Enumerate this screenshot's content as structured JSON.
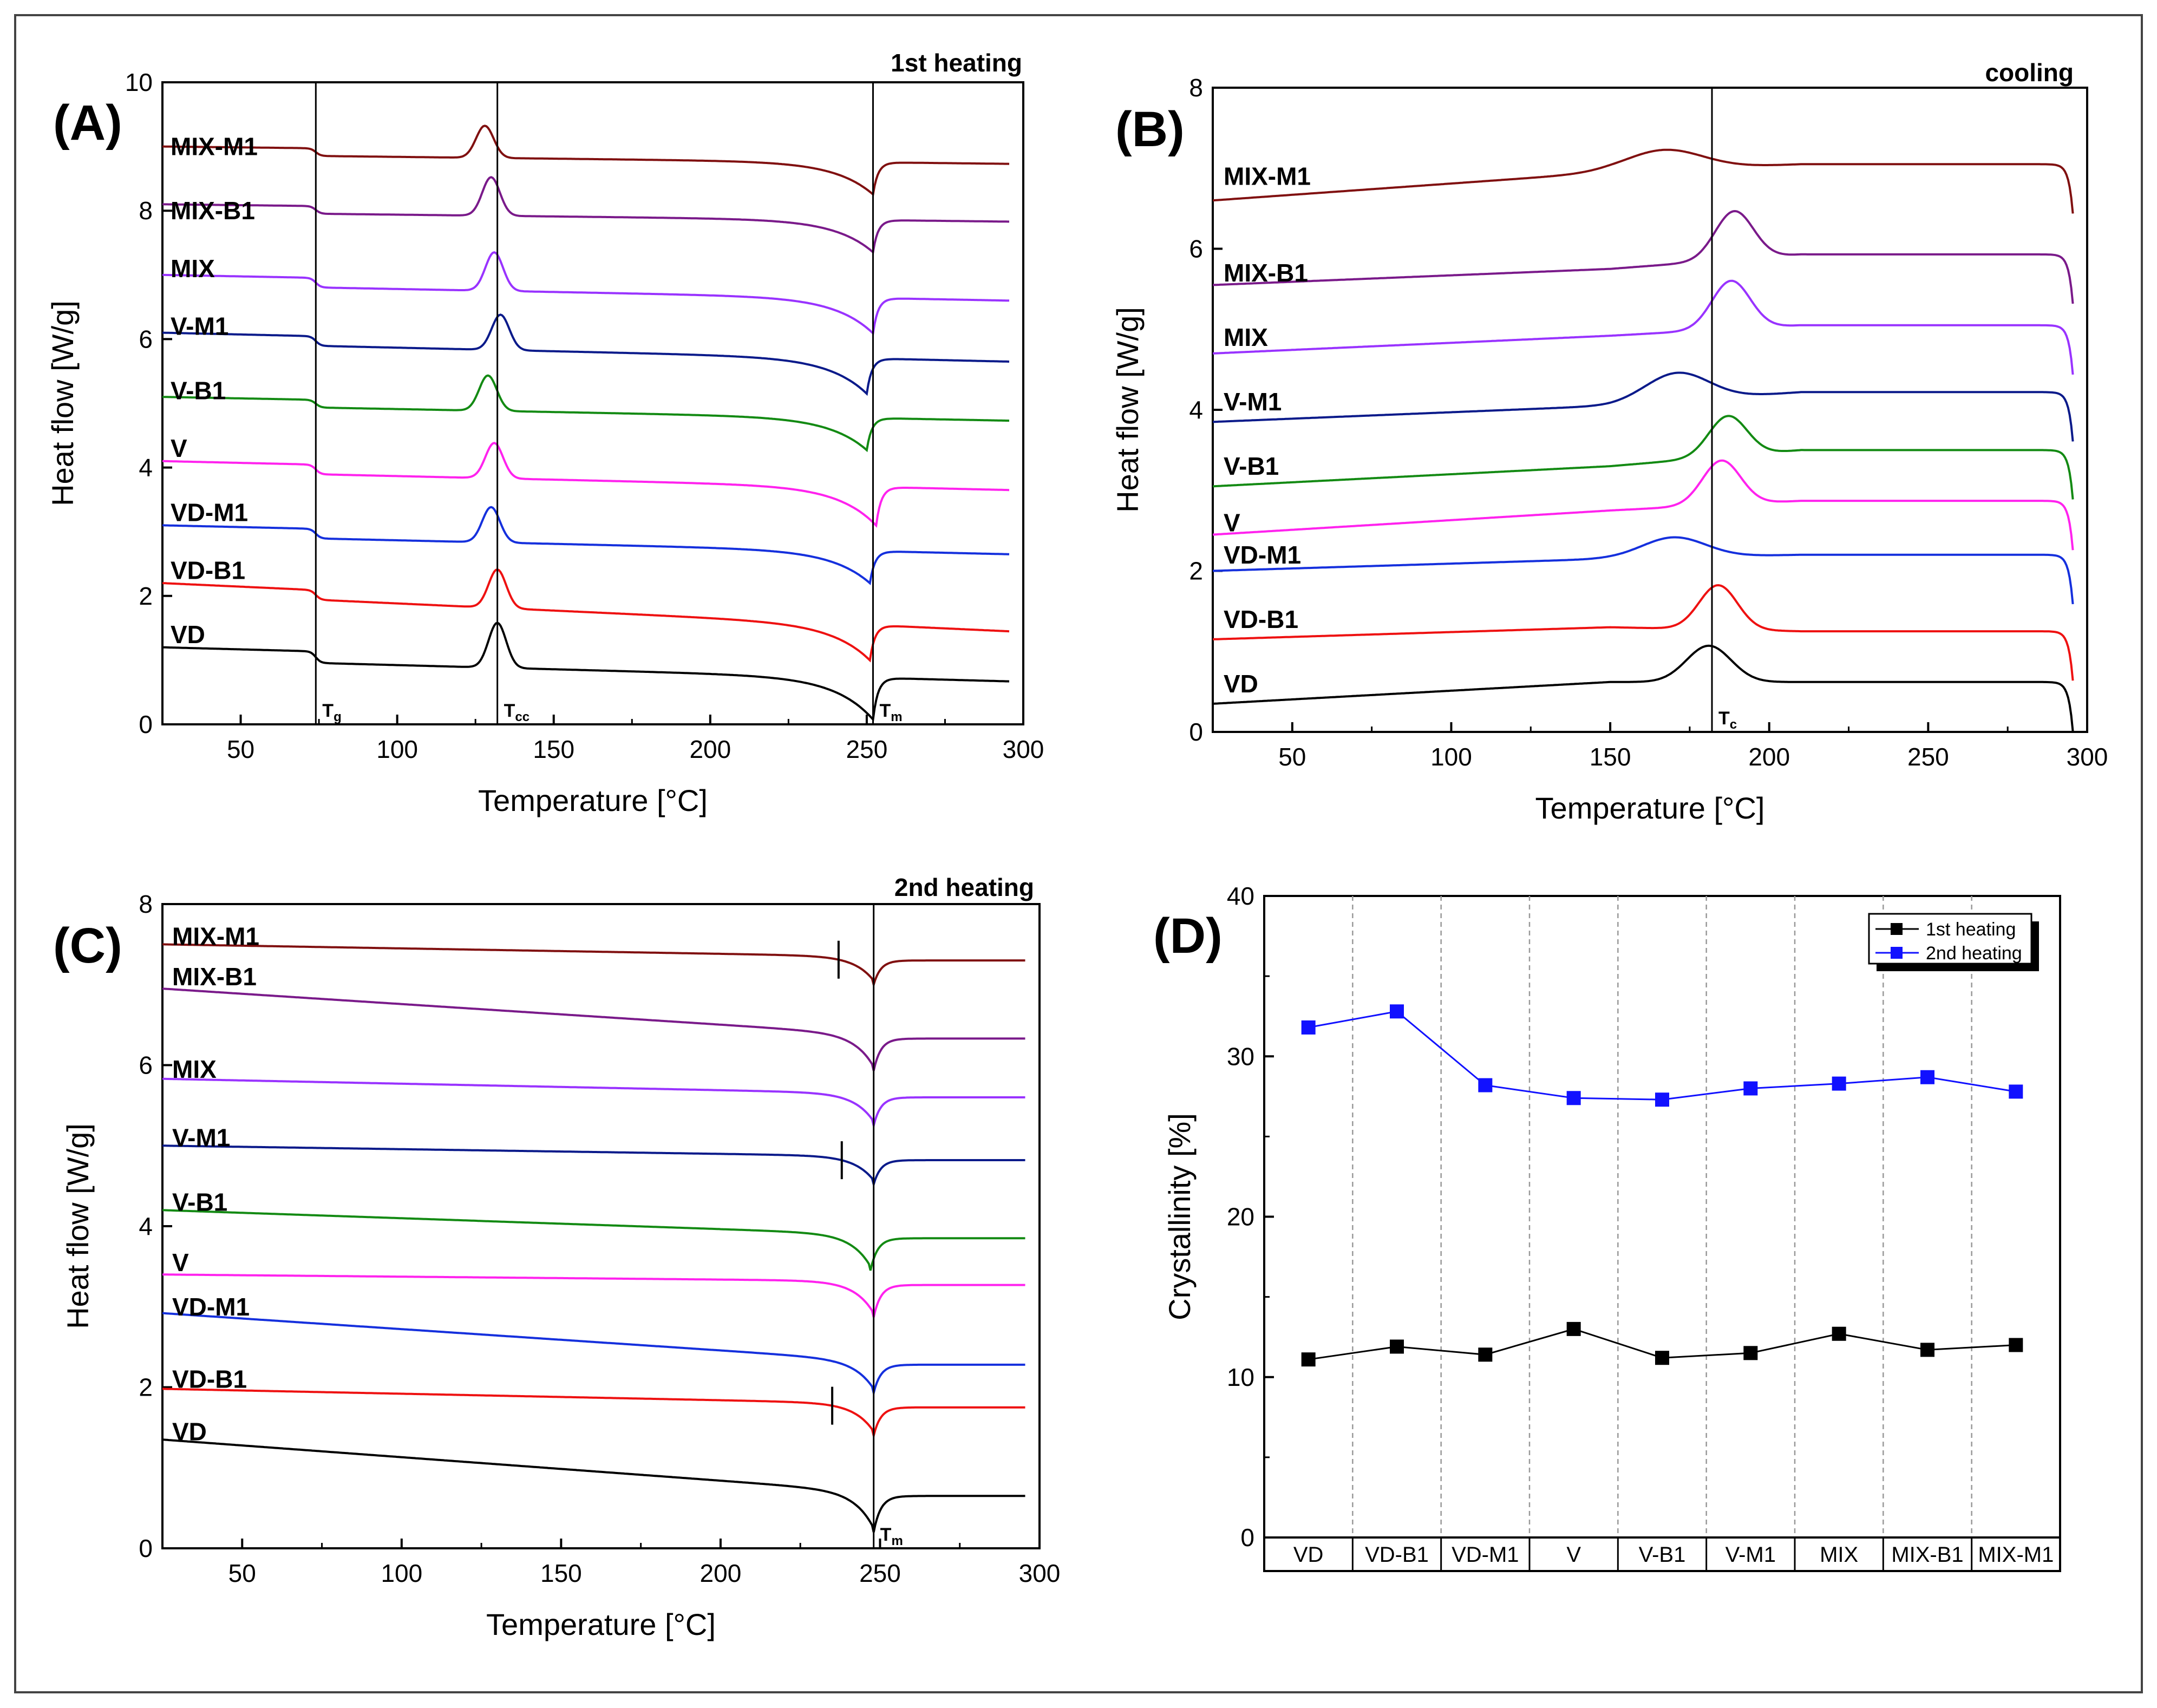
{
  "colors": {
    "VD": "#000000",
    "VD-B1": "#ee1111",
    "VD-M1": "#1530dd",
    "V": "#ff22ee",
    "V-B1": "#138a13",
    "V-M1": "#0a1a8a",
    "MIX": "#9933ff",
    "MIX-B1": "#7a1a8a",
    "MIX-M1": "#801010",
    "series1": "#000000",
    "series2": "#1111ff"
  },
  "chart_data": [
    {
      "id": "A",
      "type": "line",
      "panel_label": "(A)",
      "title": "1st heating",
      "xlabel": "Temperature [°C]",
      "ylabel": "Heat flow [W/g]",
      "xlim": [
        25,
        300
      ],
      "ylim": [
        0,
        10
      ],
      "xticks": [
        "50",
        "100",
        "150",
        "200",
        "250",
        "300"
      ],
      "yticks": [
        "0",
        "2",
        "4",
        "6",
        "8",
        "10"
      ],
      "vlines": [
        {
          "x": 74,
          "label": "T",
          "sub": "g"
        },
        {
          "x": 132,
          "label": "T",
          "sub": "cc"
        },
        {
          "x": 252,
          "label": "T",
          "sub": "m"
        }
      ],
      "series": [
        {
          "name": "VD",
          "start": 1.2,
          "end": 0.85,
          "tg_step": 0.18,
          "cc": {
            "x": 132,
            "h": 0.7
          },
          "m": {
            "x": 252,
            "d": 0.65
          },
          "label_y": 1.4
        },
        {
          "name": "VD-B1",
          "start": 2.2,
          "end": 1.6,
          "tg_step": 0.15,
          "cc": {
            "x": 132,
            "h": 0.6
          },
          "m": {
            "x": 251,
            "d": 0.55
          },
          "label_y": 2.4
        },
        {
          "name": "VD-M1",
          "start": 3.1,
          "end": 2.8,
          "tg_step": 0.15,
          "cc": {
            "x": 130,
            "h": 0.55
          },
          "m": {
            "x": 251,
            "d": 0.5
          },
          "label_y": 3.3
        },
        {
          "name": "V",
          "start": 4.1,
          "end": 3.8,
          "tg_step": 0.15,
          "cc": {
            "x": 131,
            "h": 0.55
          },
          "m": {
            "x": 253,
            "d": 0.6
          },
          "label_y": 4.3
        },
        {
          "name": "V-B1",
          "start": 5.1,
          "end": 4.85,
          "tg_step": 0.12,
          "cc": {
            "x": 129,
            "h": 0.55
          },
          "m": {
            "x": 250,
            "d": 0.5
          },
          "label_y": 5.2
        },
        {
          "name": "V-M1",
          "start": 6.1,
          "end": 5.8,
          "tg_step": 0.15,
          "cc": {
            "x": 133,
            "h": 0.55
          },
          "m": {
            "x": 250,
            "d": 0.55
          },
          "label_y": 6.2
        },
        {
          "name": "MIX",
          "start": 7.0,
          "end": 6.75,
          "tg_step": 0.15,
          "cc": {
            "x": 131,
            "h": 0.6
          },
          "m": {
            "x": 252,
            "d": 0.55
          },
          "label_y": 7.1
        },
        {
          "name": "MIX-B1",
          "start": 8.1,
          "end": 7.95,
          "tg_step": 0.12,
          "cc": {
            "x": 130,
            "h": 0.6
          },
          "m": {
            "x": 252,
            "d": 0.5
          },
          "label_y": 8.0
        },
        {
          "name": "MIX-M1",
          "start": 9.0,
          "end": 8.85,
          "tg_step": 0.12,
          "cc": {
            "x": 128,
            "h": 0.5
          },
          "m": {
            "x": 252,
            "d": 0.5
          },
          "label_y": 9.0
        }
      ]
    },
    {
      "id": "B",
      "type": "line",
      "panel_label": "(B)",
      "title": "cooling",
      "xlabel": "Temperature [°C]",
      "ylabel": "Heat flow [W/g]",
      "xlim": [
        25,
        300
      ],
      "ylim": [
        0,
        8
      ],
      "xticks": [
        "50",
        "100",
        "150",
        "200",
        "250",
        "300"
      ],
      "yticks": [
        "0",
        "2",
        "4",
        "6",
        "8"
      ],
      "vlines": [
        {
          "x": 182,
          "label": "T",
          "sub": "c"
        }
      ],
      "series": [
        {
          "name": "VD",
          "start": 0.35,
          "mid": 0.62,
          "end": 0.62,
          "peak": {
            "x": 181,
            "h": 0.45,
            "w": 7
          },
          "label_y": 0.6
        },
        {
          "name": "VD-B1",
          "start": 1.15,
          "mid": 1.3,
          "end": 1.25,
          "peak": {
            "x": 184,
            "h": 0.55,
            "w": 6
          },
          "label_y": 1.4
        },
        {
          "name": "VD-M1",
          "start": 2.0,
          "mid": 2.15,
          "end": 2.2,
          "peak": {
            "x": 170,
            "h": 0.25,
            "w": 10
          },
          "label_y": 2.2
        },
        {
          "name": "V",
          "start": 2.45,
          "mid": 2.75,
          "end": 2.87,
          "peak": {
            "x": 185,
            "h": 0.55,
            "w": 6
          },
          "label_y": 2.6
        },
        {
          "name": "V-B1",
          "start": 3.05,
          "mid": 3.3,
          "end": 3.5,
          "peak": {
            "x": 187,
            "h": 0.5,
            "w": 6
          },
          "label_y": 3.3
        },
        {
          "name": "V-M1",
          "start": 3.85,
          "mid": 4.05,
          "end": 4.22,
          "peak": {
            "x": 171,
            "h": 0.35,
            "w": 10
          },
          "label_y": 4.1
        },
        {
          "name": "MIX",
          "start": 4.7,
          "mid": 4.92,
          "end": 5.05,
          "peak": {
            "x": 188,
            "h": 0.6,
            "w": 6
          },
          "label_y": 4.9
        },
        {
          "name": "MIX-B1",
          "start": 5.55,
          "mid": 5.75,
          "end": 5.93,
          "peak": {
            "x": 189,
            "h": 0.6,
            "w": 6
          },
          "label_y": 5.7
        },
        {
          "name": "MIX-M1",
          "start": 6.6,
          "mid": 6.95,
          "end": 7.05,
          "peak": {
            "x": 167,
            "h": 0.25,
            "w": 12
          },
          "label_y": 6.9
        }
      ]
    },
    {
      "id": "C",
      "type": "line",
      "panel_label": "(C)",
      "title": "2nd heating",
      "xlabel": "Temperature [°C]",
      "ylabel": "Heat flow [W/g]",
      "xlim": [
        25,
        300
      ],
      "ylim": [
        0,
        8
      ],
      "xticks": [
        "50",
        "100",
        "150",
        "200",
        "250",
        "300"
      ],
      "yticks": [
        "0",
        "2",
        "4",
        "6",
        "8"
      ],
      "vlines": [
        {
          "x": 248,
          "label": "T",
          "sub": "m"
        }
      ],
      "series": [
        {
          "name": "VD",
          "start": 1.35,
          "end": 0.65,
          "m": {
            "x": 248,
            "d": 0.45
          },
          "label_y": 1.45
        },
        {
          "name": "VD-B1",
          "start": 1.98,
          "end": 1.75,
          "m": {
            "x": 248,
            "d": 0.35
          },
          "label_y": 2.1,
          "tick": 235
        },
        {
          "name": "VD-M1",
          "start": 2.92,
          "end": 2.28,
          "m": {
            "x": 248,
            "d": 0.35
          },
          "label_y": 3.0
        },
        {
          "name": "V",
          "start": 3.4,
          "end": 3.27,
          "m": {
            "x": 248,
            "d": 0.4
          },
          "label_y": 3.55
        },
        {
          "name": "V-B1",
          "start": 4.2,
          "end": 3.85,
          "m": {
            "x": 247,
            "d": 0.4
          },
          "label_y": 4.3
        },
        {
          "name": "V-M1",
          "start": 5.0,
          "end": 4.82,
          "m": {
            "x": 248,
            "d": 0.3
          },
          "label_y": 5.1,
          "tick": 238
        },
        {
          "name": "MIX",
          "start": 5.83,
          "end": 5.6,
          "m": {
            "x": 248,
            "d": 0.35
          },
          "label_y": 5.95
        },
        {
          "name": "MIX-B1",
          "start": 6.95,
          "end": 6.33,
          "m": {
            "x": 248,
            "d": 0.4
          },
          "label_y": 7.1
        },
        {
          "name": "MIX-M1",
          "start": 7.5,
          "end": 7.3,
          "m": {
            "x": 248,
            "d": 0.3
          },
          "label_y": 7.6,
          "tick": 237
        }
      ]
    },
    {
      "id": "D",
      "type": "line",
      "panel_label": "(D)",
      "title": "",
      "xlabel": "",
      "ylabel": "Crystallinity [%]",
      "ylim": [
        0,
        40
      ],
      "yticks": [
        "0",
        "10",
        "20",
        "30",
        "40"
      ],
      "categories": [
        "VD",
        "VD-B1",
        "VD-M1",
        "V",
        "V-B1",
        "V-M1",
        "MIX",
        "MIX-B1",
        "MIX-M1"
      ],
      "legend": "top-right",
      "series": [
        {
          "name": "1st heating",
          "values": [
            11.1,
            11.9,
            11.4,
            13.0,
            11.2,
            11.5,
            12.7,
            11.7,
            12.0
          ]
        },
        {
          "name": "2nd heating",
          "values": [
            31.8,
            32.8,
            28.2,
            27.4,
            27.3,
            28.0,
            28.3,
            28.7,
            27.8
          ]
        }
      ]
    }
  ]
}
